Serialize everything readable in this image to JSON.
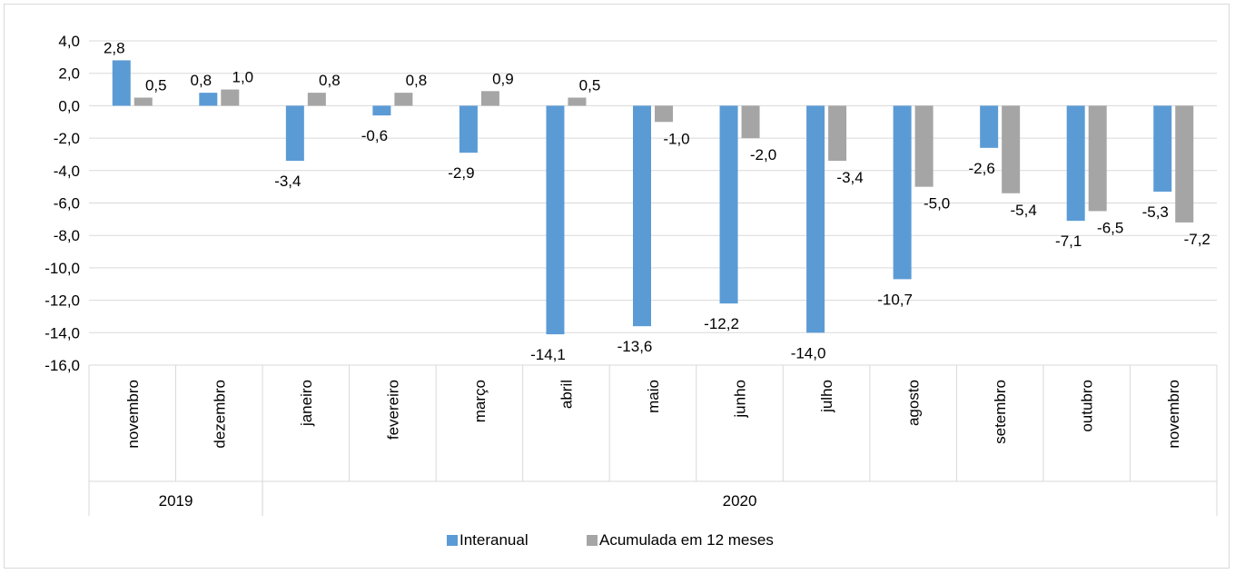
{
  "chart_data": {
    "type": "bar",
    "categories": [
      "novembro",
      "dezembro",
      "janeiro",
      "fevereiro",
      "março",
      "abril",
      "maio",
      "junho",
      "julho",
      "agosto",
      "setembro",
      "outubro",
      "novembro"
    ],
    "category_groups": [
      {
        "label": "2019",
        "count": 2
      },
      {
        "label": "2020",
        "count": 11
      }
    ],
    "series": [
      {
        "name": "Interanual",
        "color": "#5b9bd5",
        "values": [
          2.8,
          0.8,
          -3.4,
          -0.6,
          -2.9,
          -14.1,
          -13.6,
          -12.2,
          -14.0,
          -10.7,
          -2.6,
          -7.1,
          -5.3
        ],
        "labels": [
          "2,8",
          "0,8",
          "-3,4",
          "-0,6",
          "-2,9",
          "-14,1",
          "-13,6",
          "-12,2",
          "-14,0",
          "-10,7",
          "-2,6",
          "-7,1",
          "-5,3"
        ]
      },
      {
        "name": "Acumulada em 12 meses",
        "color": "#a5a5a5",
        "values": [
          0.5,
          1.0,
          0.8,
          0.8,
          0.9,
          0.5,
          -1.0,
          -2.0,
          -3.4,
          -5.0,
          -5.4,
          -6.5,
          -7.2
        ],
        "labels": [
          "0,5",
          "1,0",
          "0,8",
          "0,8",
          "0,9",
          "0,5",
          "-1,0",
          "-2,0",
          "-3,4",
          "-5,0",
          "-5,4",
          "-6,5",
          "-7,2"
        ]
      }
    ],
    "yticks": [
      4,
      2,
      0,
      -2,
      -4,
      -6,
      -8,
      -10,
      -12,
      -14,
      -16
    ],
    "ytick_labels": [
      "4,0",
      "2,0",
      "0,0",
      "-2,0",
      "-4,0",
      "-6,0",
      "-8,0",
      "-10,0",
      "-12,0",
      "-14,0",
      "-16,0"
    ],
    "ylim": [
      -16,
      4
    ],
    "grid": true,
    "legend_position": "bottom"
  }
}
